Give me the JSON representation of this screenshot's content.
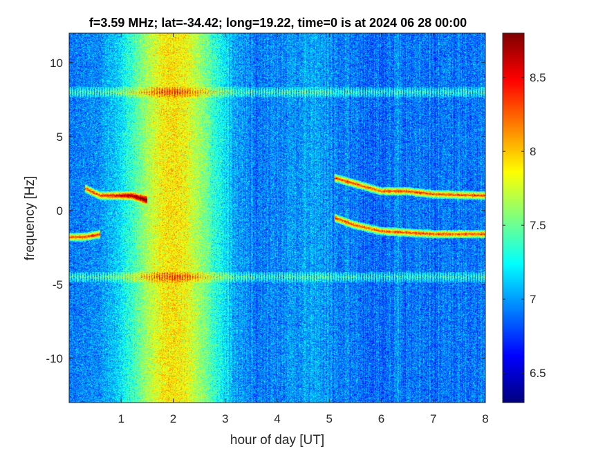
{
  "chart_data": {
    "type": "heatmap",
    "title": "f=3.59 MHz;  lat=-34.42; long=19.22, time=0 is at 2024 06 28 00:00",
    "xlabel": "hour of day [UT]",
    "ylabel": "frequency [Hz]",
    "xlim": [
      0,
      8
    ],
    "ylim": [
      -13,
      12
    ],
    "x_ticks": [
      1,
      2,
      3,
      4,
      5,
      6,
      7,
      8
    ],
    "y_ticks": [
      -10,
      -5,
      0,
      5,
      10
    ],
    "colorbar": {
      "clim": [
        6.3,
        8.8
      ],
      "ticks": [
        6.5,
        7,
        7.5,
        8,
        8.5
      ],
      "colormap": "jet"
    },
    "features": {
      "background_level": 6.9,
      "enhanced_band": {
        "x_center": 2.0,
        "x_width": 0.9,
        "peak_level": 7.9
      },
      "horizontal_lines_hz": [
        8.0,
        -4.5
      ],
      "doppler_traces": [
        {
          "points": [
            [
              0.3,
              1.5
            ],
            [
              0.6,
              1.0
            ],
            [
              0.9,
              1.0
            ],
            [
              1.2,
              1.0
            ],
            [
              1.5,
              0.7
            ]
          ]
        },
        {
          "points": [
            [
              0.0,
              -1.8
            ],
            [
              0.3,
              -1.8
            ],
            [
              0.6,
              -1.6
            ]
          ]
        },
        {
          "points": [
            [
              5.1,
              2.2
            ],
            [
              5.5,
              1.8
            ],
            [
              6.0,
              1.3
            ],
            [
              6.5,
              1.3
            ],
            [
              7.0,
              1.1
            ],
            [
              8.0,
              1.0
            ]
          ]
        },
        {
          "points": [
            [
              5.1,
              -0.5
            ],
            [
              5.5,
              -1.0
            ],
            [
              6.0,
              -1.4
            ],
            [
              6.5,
              -1.5
            ],
            [
              7.0,
              -1.6
            ],
            [
              8.0,
              -1.6
            ]
          ]
        }
      ]
    }
  }
}
